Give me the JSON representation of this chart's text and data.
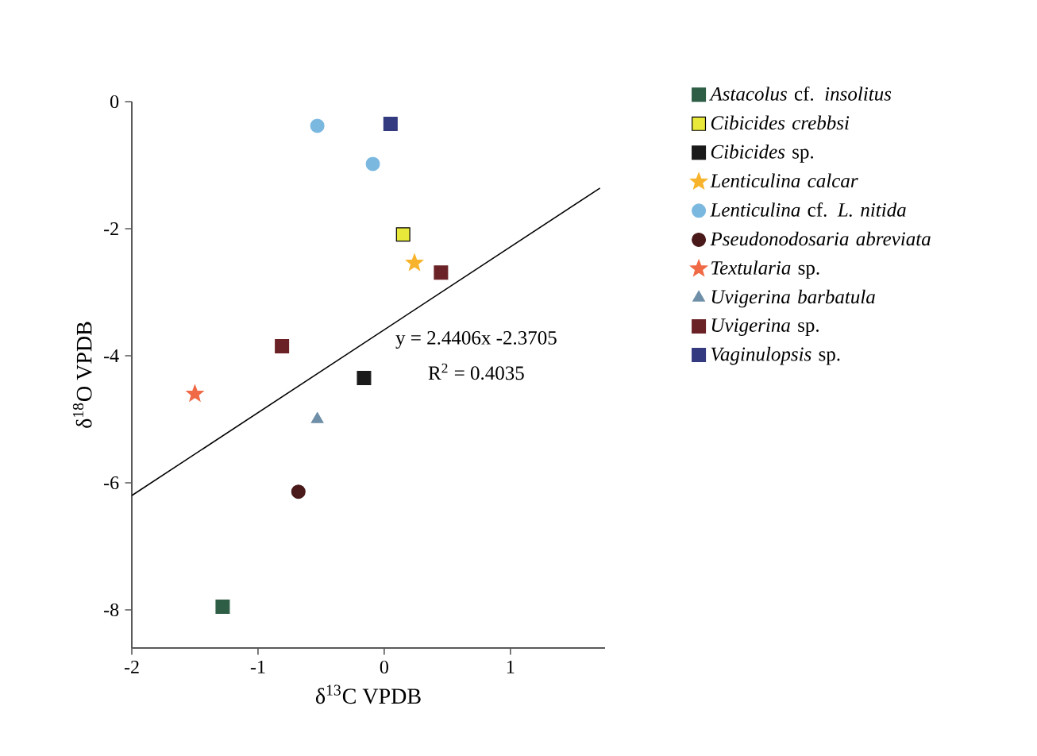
{
  "chart_data": {
    "type": "scatter",
    "xlabel": "δ$^{13}$C VPDB",
    "ylabel": "δ$^{18}$O VPDB",
    "xlim": [
      -2,
      1.75
    ],
    "xticks": [
      -2,
      -1,
      0,
      1
    ],
    "ylim": [
      -8.6,
      0
    ],
    "yticks": [
      -8,
      -6,
      -4,
      -2,
      0
    ],
    "grid": false,
    "legend": "right",
    "annotations": [
      "y = 2.4406x -2.3705",
      "R$^{2}$ = 0.4035"
    ],
    "series": [
      {
        "name": "*Astacolus* cf. *insolitus*",
        "color": "#2e5e45",
        "marker": "square",
        "x": [
          -1.28
        ],
        "values": [
          -7.95
        ]
      },
      {
        "name": "*Cibicides crebbsi*",
        "color": "#e8e83a",
        "marker": "square",
        "x": [
          0.15
        ],
        "values": [
          -2.09
        ]
      },
      {
        "name": "*Cibicides* sp.",
        "color": "#1a1a1a",
        "marker": "square",
        "x": [
          -0.16
        ],
        "values": [
          -4.35
        ]
      },
      {
        "name": "*Lenticulina calcar*",
        "color": "#f7b32b",
        "marker": "star",
        "x": [
          0.24
        ],
        "values": [
          -2.54
        ]
      },
      {
        "name": "*Lenticulina* cf. *L. nitida*",
        "color": "#7ab8e0",
        "marker": "circle",
        "x": [
          -0.53,
          -0.09
        ],
        "values": [
          -0.38,
          -0.98
        ]
      },
      {
        "name": "*Pseudonodosaria abreviata*",
        "color": "#4a1a1a",
        "marker": "circle",
        "x": [
          -0.68
        ],
        "values": [
          -6.14
        ]
      },
      {
        "name": "*Textularia* sp.",
        "color": "#ef6a45",
        "marker": "star",
        "x": [
          -1.5
        ],
        "values": [
          -4.6
        ]
      },
      {
        "name": "*Uvigerina barbatula*",
        "color": "#6f8fa8",
        "marker": "triangle",
        "x": [
          -0.53
        ],
        "values": [
          -5.0
        ]
      },
      {
        "name": "*Uvigerina* sp.",
        "color": "#6b2226",
        "marker": "square",
        "x": [
          0.45,
          -0.81
        ],
        "values": [
          -2.69,
          -3.85
        ]
      },
      {
        "name": "*Vaginulopsis* sp.",
        "color": "#333a80",
        "marker": "square",
        "x": [
          0.05
        ],
        "values": [
          -0.35
        ]
      },
      {
        "type": "line",
        "color": "#000000",
        "marker": "none",
        "x": [
          -2,
          1.71
        ],
        "values": [
          -6.2,
          -1.36
        ]
      }
    ]
  }
}
